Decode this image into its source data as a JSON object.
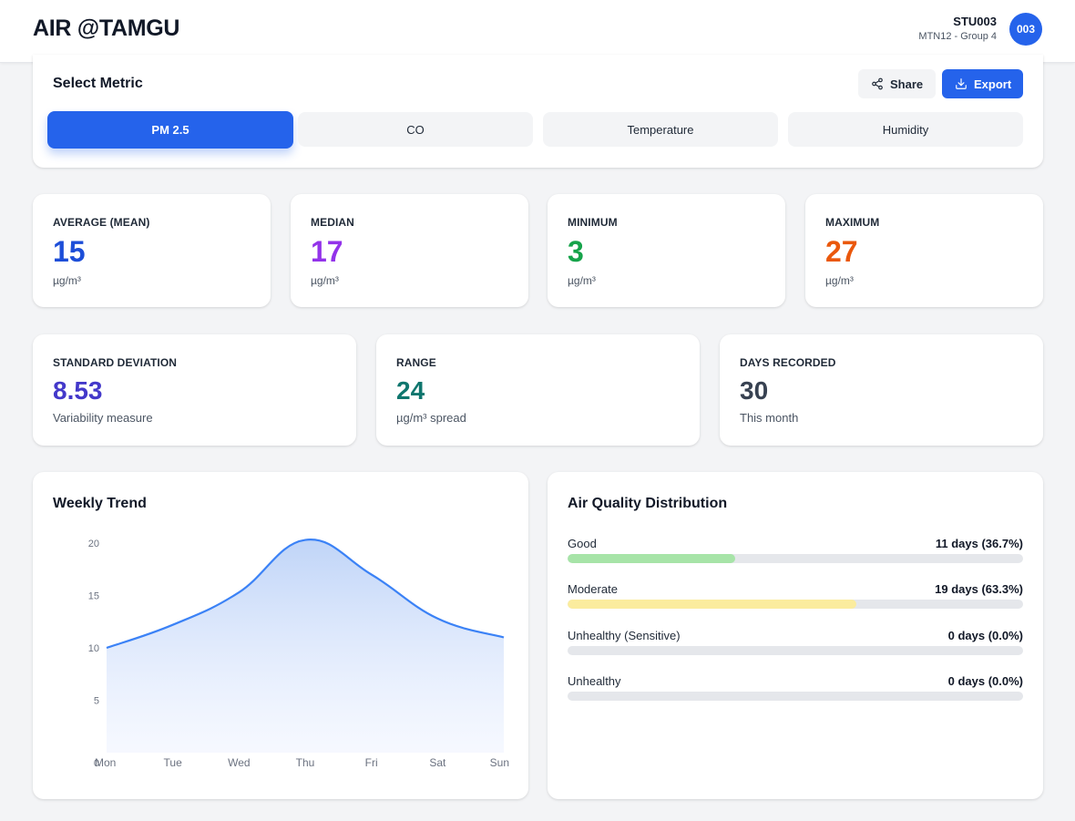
{
  "header": {
    "brand": "AIR @TAMGU",
    "user_id": "STU003",
    "user_group": "MTN12 - Group 4",
    "avatar_text": "003"
  },
  "metric_selector": {
    "title": "Select Metric",
    "share_label": "Share",
    "export_label": "Export",
    "tabs": [
      {
        "label": "PM 2.5",
        "active": true
      },
      {
        "label": "CO",
        "active": false
      },
      {
        "label": "Temperature",
        "active": false
      },
      {
        "label": "Humidity",
        "active": false
      }
    ]
  },
  "stats": [
    {
      "label": "AVERAGE (MEAN)",
      "value": "15",
      "unit": "µg/m³",
      "color": "#1d4ed8"
    },
    {
      "label": "MEDIAN",
      "value": "17",
      "unit": "µg/m³",
      "color": "#9333ea"
    },
    {
      "label": "MINIMUM",
      "value": "3",
      "unit": "µg/m³",
      "color": "#16a34a"
    },
    {
      "label": "MAXIMUM",
      "value": "27",
      "unit": "µg/m³",
      "color": "#ea580c"
    }
  ],
  "stats2": [
    {
      "label": "STANDARD DEVIATION",
      "value": "8.53",
      "unit": "Variability measure",
      "color": "#4338ca"
    },
    {
      "label": "RANGE",
      "value": "24",
      "unit": "µg/m³ spread",
      "color": "#0f766e"
    },
    {
      "label": "DAYS RECORDED",
      "value": "30",
      "unit": "This month",
      "color": "#374151"
    }
  ],
  "weekly_trend": {
    "title": "Weekly Trend"
  },
  "chart_data": {
    "type": "area",
    "title": "Weekly Trend",
    "xlabel": "",
    "ylabel": "",
    "categories": [
      "Mon",
      "Tue",
      "Wed",
      "Thu",
      "Fri",
      "Sat",
      "Sun"
    ],
    "values": [
      10,
      12.2,
      15.3,
      20.3,
      17,
      12.8,
      11
    ],
    "ylim": [
      0,
      20
    ],
    "yticks": [
      0,
      5,
      10,
      15,
      20
    ],
    "grid": false,
    "line_color": "#3b82f6"
  },
  "distribution": {
    "title": "Air Quality Distribution",
    "rows": [
      {
        "label": "Good",
        "count": "11 days (36.7%)",
        "fraction": 0.367,
        "color": "#a7e4a8"
      },
      {
        "label": "Moderate",
        "count": "19 days (63.3%)",
        "fraction": 0.633,
        "color": "#fbec9e"
      },
      {
        "label": "Unhealthy (Sensitive)",
        "count": "0 days (0.0%)",
        "fraction": 0.0,
        "color": "#fdba74"
      },
      {
        "label": "Unhealthy",
        "count": "0 days (0.0%)",
        "fraction": 0.0,
        "color": "#fca5a5"
      }
    ]
  }
}
